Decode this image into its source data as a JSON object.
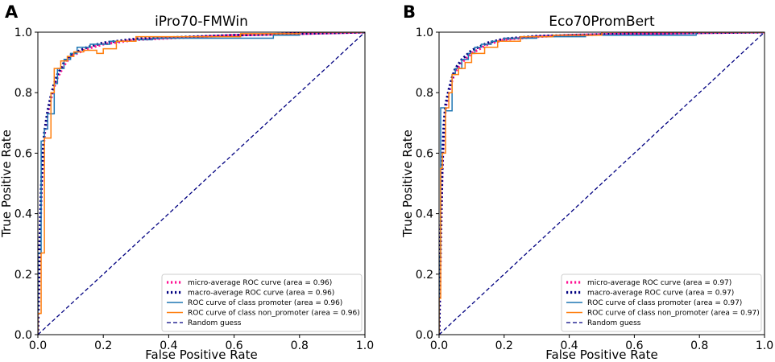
{
  "chart_data": [
    {
      "panel_letter": "A",
      "type": "line",
      "title": "iPro70-FMWin",
      "xlabel": "False Positive Rate",
      "ylabel": "True Positive Rate",
      "xlim": [
        0.0,
        1.0
      ],
      "ylim": [
        0.0,
        1.0
      ],
      "xticks": [
        "0.0",
        "0.2",
        "0.4",
        "0.6",
        "0.8",
        "1.0"
      ],
      "yticks": [
        "0.0",
        "0.2",
        "0.4",
        "0.6",
        "0.8",
        "1.0"
      ],
      "legend_position": "lower-right",
      "series": [
        {
          "name": "micro-average ROC curve (area = 0.96)",
          "color": "#ff1493",
          "style": "dotted",
          "x": [
            0,
            0.005,
            0.01,
            0.015,
            0.02,
            0.03,
            0.04,
            0.05,
            0.06,
            0.08,
            0.1,
            0.15,
            0.2,
            0.3,
            0.4,
            0.6,
            0.8,
            1.0
          ],
          "y": [
            0,
            0.25,
            0.45,
            0.58,
            0.66,
            0.73,
            0.78,
            0.82,
            0.85,
            0.89,
            0.92,
            0.945,
            0.96,
            0.975,
            0.98,
            0.99,
            0.995,
            1.0
          ]
        },
        {
          "name": "macro-average ROC curve (area = 0.96)",
          "color": "#000080",
          "style": "dotted",
          "x": [
            0,
            0.005,
            0.01,
            0.015,
            0.02,
            0.03,
            0.04,
            0.05,
            0.06,
            0.08,
            0.1,
            0.15,
            0.2,
            0.3,
            0.4,
            0.6,
            0.8,
            1.0
          ],
          "y": [
            0,
            0.28,
            0.48,
            0.6,
            0.67,
            0.74,
            0.79,
            0.83,
            0.86,
            0.9,
            0.925,
            0.95,
            0.965,
            0.978,
            0.982,
            0.99,
            0.995,
            1.0
          ]
        },
        {
          "name": "ROC curve of class promoter (area = 0.96)",
          "color": "#1f77b4",
          "style": "step",
          "x": [
            0,
            0,
            0.01,
            0.01,
            0.02,
            0.02,
            0.03,
            0.03,
            0.05,
            0.05,
            0.06,
            0.06,
            0.08,
            0.08,
            0.1,
            0.1,
            0.12,
            0.12,
            0.16,
            0.16,
            0.22,
            0.22,
            0.3,
            0.3,
            0.35,
            0.35,
            0.72,
            0.72,
            0.8,
            0.8,
            1.0
          ],
          "y": [
            0,
            0.27,
            0.27,
            0.64,
            0.64,
            0.68,
            0.68,
            0.73,
            0.73,
            0.83,
            0.83,
            0.88,
            0.88,
            0.91,
            0.91,
            0.93,
            0.93,
            0.95,
            0.95,
            0.96,
            0.96,
            0.97,
            0.97,
            0.975,
            0.975,
            0.98,
            0.98,
            0.99,
            0.99,
            1.0,
            1.0
          ]
        },
        {
          "name": "ROC curve of class non_promoter (area = 0.96)",
          "color": "#ff7f0e",
          "style": "step",
          "x": [
            0,
            0,
            0.01,
            0.01,
            0.02,
            0.02,
            0.04,
            0.04,
            0.05,
            0.05,
            0.07,
            0.07,
            0.09,
            0.09,
            0.11,
            0.11,
            0.14,
            0.14,
            0.18,
            0.18,
            0.2,
            0.2,
            0.24,
            0.24,
            0.3,
            0.3,
            0.62,
            0.62,
            0.8,
            0.8,
            1.0
          ],
          "y": [
            0,
            0.07,
            0.07,
            0.27,
            0.27,
            0.65,
            0.65,
            0.8,
            0.8,
            0.88,
            0.88,
            0.905,
            0.905,
            0.92,
            0.92,
            0.935,
            0.935,
            0.94,
            0.94,
            0.93,
            0.93,
            0.945,
            0.945,
            0.97,
            0.97,
            0.985,
            0.985,
            0.995,
            0.995,
            1.0,
            1.0
          ]
        },
        {
          "name": "Random guess",
          "color": "#000080",
          "style": "dashed",
          "x": [
            0,
            1
          ],
          "y": [
            0,
            1
          ]
        }
      ]
    },
    {
      "panel_letter": "B",
      "type": "line",
      "title": "Eco70PromBert",
      "xlabel": "False Positive Rate",
      "ylabel": "True Positive Rate",
      "xlim": [
        0.0,
        1.0
      ],
      "ylim": [
        0.0,
        1.0
      ],
      "xticks": [
        "0.0",
        "0.2",
        "0.4",
        "0.6",
        "0.8",
        "1.0"
      ],
      "yticks": [
        "0.0",
        "0.2",
        "0.4",
        "0.6",
        "0.8",
        "1.0"
      ],
      "legend_position": "lower-right",
      "series": [
        {
          "name": "micro-average ROC curve (area = 0.97)",
          "color": "#ff1493",
          "style": "dotted",
          "x": [
            0,
            0.005,
            0.01,
            0.015,
            0.02,
            0.03,
            0.04,
            0.05,
            0.07,
            0.1,
            0.15,
            0.2,
            0.3,
            0.4,
            0.6,
            0.8,
            1.0
          ],
          "y": [
            0,
            0.3,
            0.55,
            0.68,
            0.75,
            0.8,
            0.84,
            0.87,
            0.9,
            0.93,
            0.96,
            0.975,
            0.985,
            0.99,
            0.995,
            0.998,
            1.0
          ]
        },
        {
          "name": "macro-average ROC curve (area = 0.97)",
          "color": "#000080",
          "style": "dotted",
          "x": [
            0,
            0.005,
            0.01,
            0.015,
            0.02,
            0.03,
            0.04,
            0.05,
            0.07,
            0.1,
            0.15,
            0.2,
            0.3,
            0.4,
            0.6,
            0.8,
            1.0
          ],
          "y": [
            0,
            0.32,
            0.57,
            0.7,
            0.76,
            0.81,
            0.85,
            0.88,
            0.91,
            0.94,
            0.965,
            0.978,
            0.987,
            0.99,
            0.995,
            0.998,
            1.0
          ]
        },
        {
          "name": "ROC curve of class promoter (area = 0.97)",
          "color": "#1f77b4",
          "style": "step",
          "x": [
            0,
            0,
            0.005,
            0.005,
            0.02,
            0.02,
            0.04,
            0.04,
            0.05,
            0.05,
            0.07,
            0.07,
            0.09,
            0.09,
            0.11,
            0.11,
            0.13,
            0.13,
            0.16,
            0.16,
            0.2,
            0.2,
            0.3,
            0.3,
            0.45,
            0.45,
            0.79,
            0.79,
            1.0
          ],
          "y": [
            0,
            0.26,
            0.26,
            0.75,
            0.75,
            0.74,
            0.74,
            0.86,
            0.86,
            0.88,
            0.88,
            0.91,
            0.91,
            0.93,
            0.93,
            0.95,
            0.95,
            0.96,
            0.96,
            0.97,
            0.97,
            0.98,
            0.98,
            0.985,
            0.985,
            0.99,
            0.99,
            1.0,
            1.0
          ]
        },
        {
          "name": "ROC curve of class non_promoter (area = 0.97)",
          "color": "#ff7f0e",
          "style": "step",
          "x": [
            0,
            0,
            0.005,
            0.005,
            0.01,
            0.01,
            0.02,
            0.02,
            0.03,
            0.03,
            0.04,
            0.04,
            0.06,
            0.06,
            0.08,
            0.08,
            0.1,
            0.1,
            0.14,
            0.14,
            0.18,
            0.18,
            0.25,
            0.25,
            0.35,
            0.35,
            0.5,
            0.5,
            1.0
          ],
          "y": [
            0,
            0.12,
            0.12,
            0.55,
            0.55,
            0.6,
            0.6,
            0.75,
            0.75,
            0.8,
            0.8,
            0.86,
            0.86,
            0.88,
            0.88,
            0.9,
            0.9,
            0.93,
            0.93,
            0.95,
            0.95,
            0.97,
            0.97,
            0.985,
            0.985,
            0.99,
            0.99,
            1.0,
            1.0
          ]
        },
        {
          "name": "Random guess",
          "color": "#000080",
          "style": "dashed",
          "x": [
            0,
            1
          ],
          "y": [
            0,
            1
          ]
        }
      ]
    }
  ]
}
